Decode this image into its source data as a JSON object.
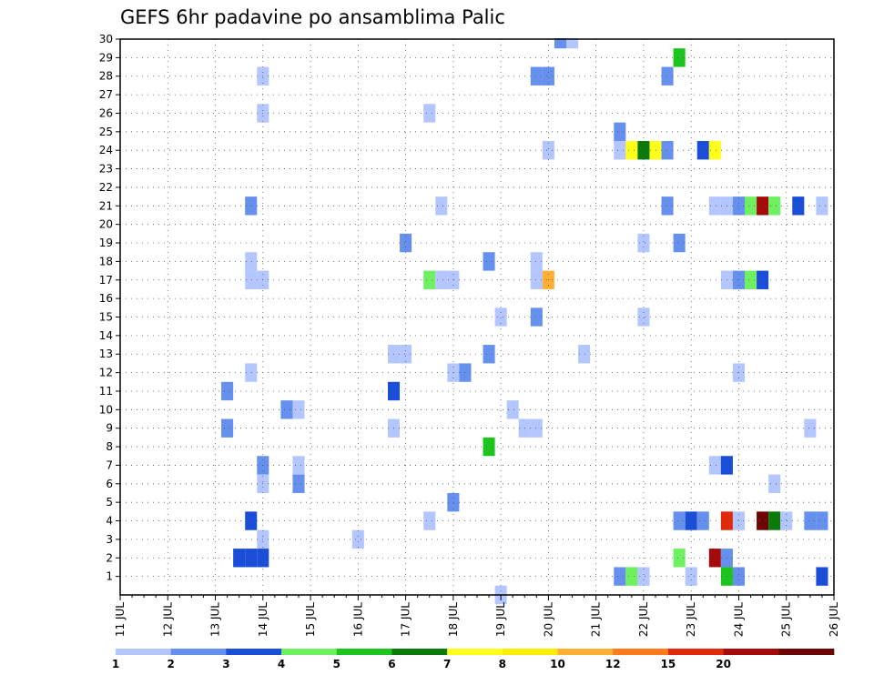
{
  "chart_data": {
    "type": "heatmap",
    "title": "GEFS 6hr padavine po ansamblima Palic",
    "x_tick_labels": [
      "11 JUL",
      "12 JUL",
      "13 JUL",
      "14 JUL",
      "15 JUL",
      "16 JUL",
      "17 JUL",
      "18 JUL",
      "19 JUL",
      "20 JUL",
      "21 JUL",
      "22 JUL",
      "23 JUL",
      "24 JUL",
      "25 JUL",
      "26 JUL"
    ],
    "y_range": [
      0,
      30
    ],
    "y_ticks": [
      1,
      2,
      3,
      4,
      5,
      6,
      7,
      8,
      9,
      10,
      11,
      12,
      13,
      14,
      15,
      16,
      17,
      18,
      19,
      20,
      21,
      22,
      23,
      24,
      25,
      26,
      27,
      28,
      29,
      30
    ],
    "x_step_hours": 6,
    "grid": true,
    "colorbar": {
      "levels": [
        "1",
        "2",
        "3",
        "4",
        "5",
        "6",
        "7",
        "8",
        "10",
        "12",
        "15",
        "20"
      ],
      "colors": [
        "#b3c6ff",
        "#6690ee",
        "#1a4ed8",
        "#6ef060",
        "#1ec41e",
        "#0a7a0a",
        "#ffff1a",
        "#ffee00",
        "#ffb033",
        "#ff7a1a",
        "#e02a0a",
        "#a50a0a",
        "#6e0505"
      ]
    },
    "cells": [
      {
        "day": 14.0,
        "m": 28,
        "c": 0
      },
      {
        "day": 14.0,
        "m": 26,
        "c": 0
      },
      {
        "day": 13.75,
        "m": 21,
        "c": 1
      },
      {
        "day": 13.75,
        "m": 18,
        "c": 0
      },
      {
        "day": 13.75,
        "m": 17,
        "c": 0
      },
      {
        "day": 14.0,
        "m": 17,
        "c": 0
      },
      {
        "day": 13.75,
        "m": 12,
        "c": 0
      },
      {
        "day": 13.25,
        "m": 11,
        "c": 1
      },
      {
        "day": 13.25,
        "m": 9,
        "c": 1
      },
      {
        "day": 14.0,
        "m": 7,
        "c": 1
      },
      {
        "day": 14.0,
        "m": 6,
        "c": 0
      },
      {
        "day": 13.75,
        "m": 4,
        "c": 2
      },
      {
        "day": 14.0,
        "m": 3,
        "c": 0
      },
      {
        "day": 13.5,
        "m": 2,
        "c": 2
      },
      {
        "day": 13.75,
        "m": 2,
        "c": 2
      },
      {
        "day": 14.0,
        "m": 2,
        "c": 2
      },
      {
        "day": 14.5,
        "m": 10,
        "c": 1
      },
      {
        "day": 14.75,
        "m": 10,
        "c": 0
      },
      {
        "day": 14.75,
        "m": 7,
        "c": 0
      },
      {
        "day": 14.75,
        "m": 6,
        "c": 1
      },
      {
        "day": 16.0,
        "m": 3,
        "c": 0
      },
      {
        "day": 17.0,
        "m": 19,
        "c": 1
      },
      {
        "day": 16.75,
        "m": 13,
        "c": 0
      },
      {
        "day": 17.0,
        "m": 13,
        "c": 0
      },
      {
        "day": 16.75,
        "m": 11,
        "c": 2
      },
      {
        "day": 16.75,
        "m": 9,
        "c": 0
      },
      {
        "day": 17.5,
        "m": 26,
        "c": 0
      },
      {
        "day": 17.75,
        "m": 21,
        "c": 0
      },
      {
        "day": 17.5,
        "m": 17,
        "c": 3
      },
      {
        "day": 17.75,
        "m": 17,
        "c": 0
      },
      {
        "day": 18.0,
        "m": 17,
        "c": 0
      },
      {
        "day": 18.0,
        "m": 12,
        "c": 0
      },
      {
        "day": 18.25,
        "m": 12,
        "c": 1
      },
      {
        "day": 18.0,
        "m": 5,
        "c": 1
      },
      {
        "day": 17.5,
        "m": 4,
        "c": 0
      },
      {
        "day": 18.75,
        "m": 18,
        "c": 1
      },
      {
        "day": 19.0,
        "m": 15,
        "c": 0
      },
      {
        "day": 18.75,
        "m": 13,
        "c": 1
      },
      {
        "day": 19.25,
        "m": 10,
        "c": 0
      },
      {
        "day": 18.75,
        "m": 8,
        "c": 4
      },
      {
        "day": 19.0,
        "m": 0,
        "c": 0
      },
      {
        "day": 20.25,
        "m": 30,
        "c": 1
      },
      {
        "day": 20.5,
        "m": 30,
        "c": 0
      },
      {
        "day": 19.75,
        "m": 28,
        "c": 1
      },
      {
        "day": 20.0,
        "m": 28,
        "c": 1
      },
      {
        "day": 20.0,
        "m": 24,
        "c": 0
      },
      {
        "day": 19.75,
        "m": 18,
        "c": 0
      },
      {
        "day": 19.75,
        "m": 17,
        "c": 0
      },
      {
        "day": 20.0,
        "m": 17,
        "c": 8
      },
      {
        "day": 19.75,
        "m": 15,
        "c": 1
      },
      {
        "day": 20.75,
        "m": 13,
        "c": 0
      },
      {
        "day": 19.5,
        "m": 9,
        "c": 0
      },
      {
        "day": 19.75,
        "m": 9,
        "c": 0
      },
      {
        "day": 21.5,
        "m": 25,
        "c": 1
      },
      {
        "day": 21.5,
        "m": 24,
        "c": 0
      },
      {
        "day": 21.75,
        "m": 24,
        "c": 6
      },
      {
        "day": 22.0,
        "m": 24,
        "c": 5
      },
      {
        "day": 22.25,
        "m": 24,
        "c": 6
      },
      {
        "day": 22.5,
        "m": 24,
        "c": 1
      },
      {
        "day": 22.5,
        "m": 28,
        "c": 1
      },
      {
        "day": 22.5,
        "m": 21,
        "c": 1
      },
      {
        "day": 22.0,
        "m": 19,
        "c": 0
      },
      {
        "day": 22.0,
        "m": 15,
        "c": 0
      },
      {
        "day": 21.5,
        "m": 1,
        "c": 1
      },
      {
        "day": 21.75,
        "m": 1,
        "c": 3
      },
      {
        "day": 22.0,
        "m": 1,
        "c": 0
      },
      {
        "day": 22.75,
        "m": 29,
        "c": 4
      },
      {
        "day": 23.25,
        "m": 24,
        "c": 2
      },
      {
        "day": 23.5,
        "m": 24,
        "c": 6
      },
      {
        "day": 22.75,
        "m": 19,
        "c": 1
      },
      {
        "day": 22.75,
        "m": 4,
        "c": 1
      },
      {
        "day": 23.0,
        "m": 4,
        "c": 2
      },
      {
        "day": 23.25,
        "m": 4,
        "c": 1
      },
      {
        "day": 22.75,
        "m": 2,
        "c": 3
      },
      {
        "day": 23.0,
        "m": 1,
        "c": 0
      },
      {
        "day": 23.5,
        "m": 21,
        "c": 0
      },
      {
        "day": 23.75,
        "m": 21,
        "c": 0
      },
      {
        "day": 24.0,
        "m": 21,
        "c": 1
      },
      {
        "day": 24.25,
        "m": 21,
        "c": 3
      },
      {
        "day": 24.5,
        "m": 21,
        "c": 11
      },
      {
        "day": 24.75,
        "m": 21,
        "c": 3
      },
      {
        "day": 25.25,
        "m": 21,
        "c": 2
      },
      {
        "day": 25.75,
        "m": 21,
        "c": 0
      },
      {
        "day": 23.75,
        "m": 17,
        "c": 0
      },
      {
        "day": 24.0,
        "m": 17,
        "c": 1
      },
      {
        "day": 24.25,
        "m": 17,
        "c": 3
      },
      {
        "day": 24.5,
        "m": 17,
        "c": 2
      },
      {
        "day": 24.0,
        "m": 12,
        "c": 0
      },
      {
        "day": 23.5,
        "m": 7,
        "c": 0
      },
      {
        "day": 23.75,
        "m": 7,
        "c": 2
      },
      {
        "day": 24.75,
        "m": 6,
        "c": 0
      },
      {
        "day": 25.5,
        "m": 9,
        "c": 0
      },
      {
        "day": 23.75,
        "m": 4,
        "c": 10
      },
      {
        "day": 24.0,
        "m": 4,
        "c": 0
      },
      {
        "day": 24.5,
        "m": 4,
        "c": 12
      },
      {
        "day": 24.75,
        "m": 4,
        "c": 5
      },
      {
        "day": 25.0,
        "m": 4,
        "c": 0
      },
      {
        "day": 25.5,
        "m": 4,
        "c": 1
      },
      {
        "day": 25.75,
        "m": 4,
        "c": 1
      },
      {
        "day": 23.5,
        "m": 2,
        "c": 11
      },
      {
        "day": 23.75,
        "m": 2,
        "c": 1
      },
      {
        "day": 23.75,
        "m": 1,
        "c": 4
      },
      {
        "day": 24.0,
        "m": 1,
        "c": 1
      },
      {
        "day": 25.75,
        "m": 1,
        "c": 2
      }
    ]
  }
}
